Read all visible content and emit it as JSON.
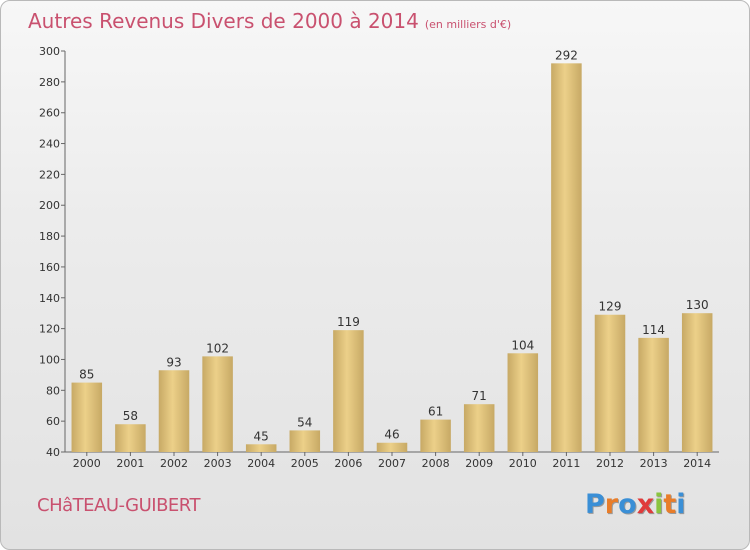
{
  "chart_data": {
    "type": "bar",
    "title": "Autres Revenus Divers de 2000 à 2014",
    "subtitle": "(en milliers d'€)",
    "xlabel": "",
    "ylabel": "",
    "categories": [
      "2000",
      "2001",
      "2002",
      "2003",
      "2004",
      "2005",
      "2006",
      "2007",
      "2008",
      "2009",
      "2010",
      "2011",
      "2012",
      "2013",
      "2014"
    ],
    "values": [
      85,
      58,
      93,
      102,
      45,
      54,
      119,
      46,
      61,
      71,
      104,
      292,
      129,
      114,
      130
    ],
    "ylim": [
      40,
      300
    ],
    "yticks": [
      40,
      60,
      80,
      100,
      120,
      140,
      160,
      180,
      200,
      220,
      240,
      260,
      280,
      300
    ],
    "grid": false,
    "bar_color": "#ecd089",
    "bar_color_dark": "#c7a965"
  },
  "location": "CHâTEAU-GUIBERT",
  "logo": {
    "letters": [
      "P",
      "r",
      "o",
      "x",
      "i",
      "t",
      "i"
    ],
    "colors": [
      "#3a8fd6",
      "#e87d2a",
      "#3a8fd6",
      "#e03b3b",
      "#8ac43f",
      "#e87d2a",
      "#3a8fd6"
    ]
  },
  "colors": {
    "title": "#c9516f",
    "axis": "#666666"
  }
}
